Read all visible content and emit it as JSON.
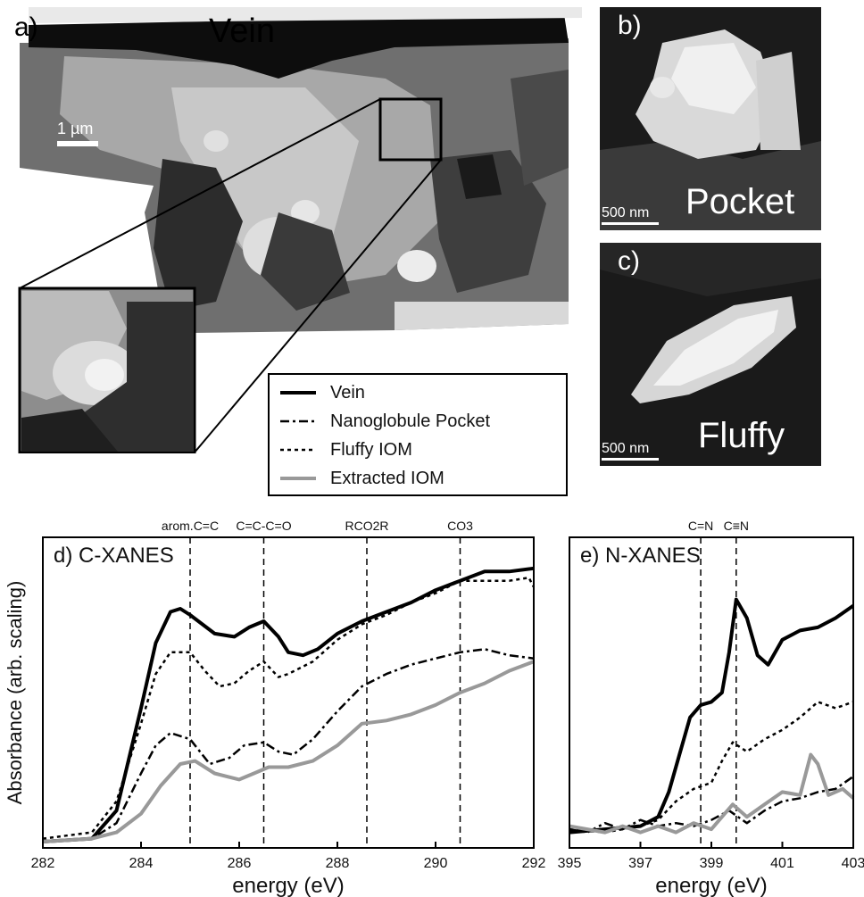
{
  "panels": {
    "a": {
      "letter": "a)",
      "title": "Vein",
      "scale": "1 µm"
    },
    "b": {
      "letter": "b)",
      "title": "Pocket",
      "scale": "500 nm"
    },
    "c": {
      "letter": "c)",
      "title": "Fluffy",
      "scale": "500 nm"
    }
  },
  "legend": [
    {
      "name": "Vein",
      "style": "solid",
      "color": "#000000"
    },
    {
      "name": "Nanoglobule Pocket",
      "style": "dashdot",
      "color": "#000000"
    },
    {
      "name": "Fluffy IOM",
      "style": "dotted",
      "color": "#000000"
    },
    {
      "name": "Extracted IOM",
      "style": "solid-gray",
      "color": "#999999"
    }
  ],
  "chart_data": [
    {
      "type": "line",
      "panel_label": "d) C-XANES",
      "xlabel": "energy (eV)",
      "ylabel": "Absorbance (arb. scaling)",
      "xlim": [
        282,
        292
      ],
      "ylim": [
        0,
        1.0
      ],
      "xticks": [
        282,
        284,
        286,
        288,
        290,
        292
      ],
      "yticks_shown": false,
      "annotations": [
        {
          "text": "arom.C=C",
          "x": 285.0
        },
        {
          "text": "C=C-C=O",
          "x": 286.5
        },
        {
          "text": "RCO2R",
          "x": 288.6
        },
        {
          "text": "CO3",
          "x": 290.5
        }
      ],
      "series": [
        {
          "name": "Vein",
          "style": "solid",
          "x": [
            282,
            283,
            283.5,
            284,
            284.3,
            284.6,
            284.8,
            285.0,
            285.5,
            285.9,
            286.2,
            286.5,
            286.8,
            287.0,
            287.3,
            287.6,
            288,
            288.5,
            289,
            289.5,
            290,
            290.5,
            291,
            291.5,
            292
          ],
          "y": [
            0.02,
            0.03,
            0.12,
            0.45,
            0.66,
            0.76,
            0.77,
            0.75,
            0.69,
            0.68,
            0.71,
            0.73,
            0.68,
            0.63,
            0.62,
            0.64,
            0.69,
            0.73,
            0.76,
            0.79,
            0.83,
            0.86,
            0.89,
            0.89,
            0.9
          ]
        },
        {
          "name": "Fluffy IOM",
          "style": "dotted",
          "x": [
            282,
            283,
            283.5,
            284,
            284.3,
            284.6,
            285.0,
            285.3,
            285.6,
            285.9,
            286.2,
            286.5,
            286.8,
            287.0,
            287.5,
            288,
            288.5,
            289,
            289.5,
            290,
            290.5,
            291,
            291.5,
            291.9,
            292
          ],
          "y": [
            0.03,
            0.05,
            0.15,
            0.4,
            0.56,
            0.63,
            0.63,
            0.57,
            0.52,
            0.53,
            0.57,
            0.6,
            0.55,
            0.56,
            0.6,
            0.67,
            0.72,
            0.75,
            0.79,
            0.82,
            0.86,
            0.86,
            0.86,
            0.87,
            0.84
          ]
        },
        {
          "name": "Nanoglobule Pocket",
          "style": "dashdot",
          "x": [
            282,
            283,
            283.5,
            284,
            284.3,
            284.6,
            285.0,
            285.4,
            285.8,
            286.1,
            286.5,
            286.8,
            287.1,
            287.5,
            288,
            288.5,
            289,
            289.5,
            290,
            290.5,
            291,
            291.5,
            292
          ],
          "y": [
            0.02,
            0.03,
            0.08,
            0.24,
            0.33,
            0.37,
            0.35,
            0.27,
            0.29,
            0.33,
            0.34,
            0.31,
            0.3,
            0.35,
            0.44,
            0.52,
            0.56,
            0.59,
            0.61,
            0.63,
            0.64,
            0.62,
            0.61
          ]
        },
        {
          "name": "Extracted IOM",
          "style": "solid-gray",
          "x": [
            282,
            283,
            283.5,
            284,
            284.4,
            284.8,
            285.1,
            285.5,
            286.0,
            286.3,
            286.6,
            287.0,
            287.5,
            288,
            288.5,
            289,
            289.5,
            290,
            290.5,
            291,
            291.5,
            292
          ],
          "y": [
            0.02,
            0.03,
            0.05,
            0.11,
            0.2,
            0.27,
            0.28,
            0.24,
            0.22,
            0.24,
            0.26,
            0.26,
            0.28,
            0.33,
            0.4,
            0.41,
            0.43,
            0.46,
            0.5,
            0.53,
            0.57,
            0.6
          ]
        }
      ]
    },
    {
      "type": "line",
      "panel_label": "e) N-XANES",
      "xlabel": "energy (eV)",
      "xlim": [
        395,
        403
      ],
      "ylim": [
        0,
        1.0
      ],
      "xticks": [
        395,
        397,
        399,
        401,
        403
      ],
      "yticks_shown": false,
      "annotations": [
        {
          "text": "C=N",
          "x": 398.7
        },
        {
          "text": "C≡N",
          "x": 399.7
        }
      ],
      "series": [
        {
          "name": "Vein",
          "style": "solid",
          "x": [
            395,
            396,
            397,
            397.5,
            397.8,
            398.1,
            398.4,
            398.7,
            399.0,
            399.3,
            399.5,
            399.7,
            400.0,
            400.3,
            400.6,
            401,
            401.5,
            402,
            402.5,
            403
          ],
          "y": [
            0.05,
            0.06,
            0.07,
            0.1,
            0.18,
            0.3,
            0.42,
            0.46,
            0.47,
            0.5,
            0.63,
            0.8,
            0.74,
            0.62,
            0.59,
            0.67,
            0.7,
            0.71,
            0.74,
            0.78
          ]
        },
        {
          "name": "Fluffy IOM",
          "style": "dotted",
          "x": [
            395,
            396,
            397,
            397.5,
            398,
            398.5,
            399,
            399.3,
            399.6,
            400,
            400.5,
            401,
            401.5,
            402,
            402.5,
            403
          ],
          "y": [
            0.06,
            0.05,
            0.07,
            0.09,
            0.15,
            0.19,
            0.21,
            0.28,
            0.34,
            0.31,
            0.35,
            0.38,
            0.42,
            0.47,
            0.45,
            0.47
          ]
        },
        {
          "name": "Nanoglobule Pocket",
          "style": "dashdot",
          "x": [
            395,
            395.5,
            396,
            396.5,
            397,
            397.5,
            398,
            398.5,
            399,
            399.5,
            400,
            400.5,
            401,
            401.5,
            402,
            402.5,
            403
          ],
          "y": [
            0.06,
            0.05,
            0.08,
            0.06,
            0.09,
            0.07,
            0.08,
            0.07,
            0.09,
            0.12,
            0.08,
            0.12,
            0.15,
            0.16,
            0.18,
            0.19,
            0.23
          ]
        },
        {
          "name": "Extracted IOM",
          "style": "solid-gray",
          "x": [
            395,
            395.5,
            396,
            396.5,
            397,
            397.5,
            398,
            398.5,
            399,
            399.3,
            399.6,
            400,
            400.5,
            401,
            401.5,
            401.8,
            402,
            402.3,
            402.7,
            403
          ],
          "y": [
            0.07,
            0.06,
            0.05,
            0.07,
            0.05,
            0.07,
            0.05,
            0.08,
            0.06,
            0.1,
            0.14,
            0.1,
            0.14,
            0.18,
            0.17,
            0.3,
            0.27,
            0.17,
            0.19,
            0.16
          ]
        }
      ]
    }
  ]
}
